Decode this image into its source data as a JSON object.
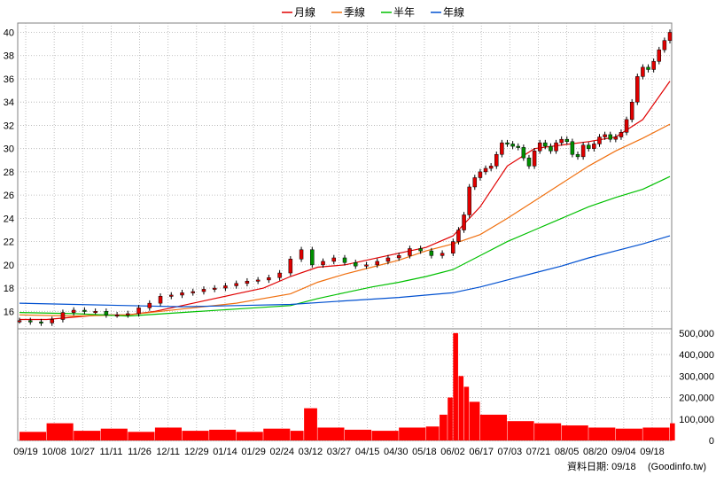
{
  "legend": [
    {
      "label": "月線",
      "color": "#e00000"
    },
    {
      "label": "季線",
      "color": "#f07010"
    },
    {
      "label": "半年",
      "color": "#00c000"
    },
    {
      "label": "年線",
      "color": "#0050d0"
    }
  ],
  "footer": {
    "date_label": "資料日期: 09/18",
    "source": "(Goodinfo.tw)"
  },
  "chart_data": [
    {
      "type": "line",
      "title": "",
      "price_axis": {
        "ylim": [
          14.5,
          40.8
        ],
        "ticks": [
          16,
          18,
          20,
          22,
          24,
          26,
          28,
          30,
          32,
          34,
          36,
          38,
          40
        ],
        "grid": true
      },
      "x_tick_labels": [
        "09/19",
        "10/08",
        "10/27",
        "11/11",
        "11/26",
        "12/11",
        "12/29",
        "01/14",
        "01/29",
        "02/24",
        "03/12",
        "03/27",
        "04/15",
        "04/30",
        "05/18",
        "06/02",
        "06/17",
        "07/03",
        "07/21",
        "08/05",
        "08/20",
        "09/04",
        "09/18"
      ],
      "series": [
        {
          "name": "月線",
          "color": "#e00000",
          "x": [
            0,
            10,
            20,
            30,
            40,
            50,
            60,
            70,
            80,
            90,
            100,
            110,
            120,
            130,
            140,
            150,
            160,
            170,
            180,
            190,
            200,
            210,
            220,
            230,
            240
          ],
          "values": [
            15.3,
            15.3,
            15.5,
            15.7,
            15.7,
            16.0,
            16.5,
            17.0,
            17.5,
            18.0,
            19.0,
            19.8,
            20.0,
            20.5,
            21.0,
            21.5,
            22.5,
            25.0,
            28.5,
            30.0,
            30.3,
            30.6,
            31.0,
            32.5,
            35.8
          ]
        },
        {
          "name": "季線",
          "color": "#f07010",
          "x": [
            0,
            20,
            40,
            60,
            80,
            100,
            110,
            120,
            130,
            140,
            150,
            160,
            170,
            180,
            190,
            200,
            210,
            220,
            230,
            240
          ],
          "values": [
            15.7,
            15.6,
            15.7,
            16.2,
            16.7,
            17.5,
            18.5,
            19.2,
            19.8,
            20.4,
            21.2,
            21.8,
            22.6,
            24.0,
            25.5,
            27.0,
            28.5,
            29.8,
            30.9,
            32.1
          ]
        },
        {
          "name": "半年",
          "color": "#00c000",
          "x": [
            0,
            20,
            40,
            60,
            80,
            100,
            110,
            120,
            130,
            140,
            150,
            160,
            170,
            180,
            190,
            200,
            210,
            220,
            230,
            240
          ],
          "values": [
            15.9,
            15.8,
            15.6,
            15.9,
            16.2,
            16.5,
            17.1,
            17.6,
            18.1,
            18.5,
            19.0,
            19.6,
            20.8,
            22.0,
            23.0,
            24.0,
            25.0,
            25.8,
            26.5,
            27.6
          ]
        },
        {
          "name": "年線",
          "color": "#0050d0",
          "x": [
            0,
            20,
            40,
            60,
            80,
            100,
            120,
            140,
            160,
            170,
            180,
            190,
            200,
            210,
            220,
            230,
            240
          ],
          "values": [
            16.7,
            16.6,
            16.5,
            16.4,
            16.5,
            16.6,
            16.9,
            17.2,
            17.6,
            18.1,
            18.7,
            19.3,
            19.9,
            20.6,
            21.2,
            21.8,
            22.5
          ]
        }
      ],
      "price_close": {
        "x": [
          0,
          4,
          8,
          12,
          16,
          20,
          24,
          28,
          32,
          36,
          40,
          44,
          48,
          52,
          56,
          60,
          64,
          68,
          72,
          76,
          80,
          84,
          88,
          92,
          96,
          100,
          104,
          108,
          112,
          116,
          120,
          124,
          128,
          132,
          136,
          140,
          144,
          148,
          152,
          156,
          160,
          162,
          164,
          166,
          168,
          170,
          172,
          174,
          176,
          178,
          180,
          182,
          184,
          186,
          188,
          190,
          192,
          194,
          196,
          198,
          200,
          202,
          204,
          206,
          208,
          210,
          212,
          214,
          216,
          218,
          220,
          222,
          224,
          226,
          228,
          230,
          232,
          234,
          236,
          238,
          240
        ],
        "values": [
          15.2,
          15.1,
          15.0,
          15.3,
          15.9,
          16.1,
          16.0,
          16.0,
          15.7,
          15.7,
          15.8,
          16.3,
          16.7,
          17.3,
          17.4,
          17.6,
          17.7,
          17.9,
          18.0,
          18.2,
          18.4,
          18.6,
          18.7,
          18.9,
          19.3,
          20.5,
          21.3,
          20.0,
          20.3,
          20.6,
          20.2,
          19.9,
          20.0,
          20.3,
          20.6,
          20.8,
          21.4,
          21.2,
          20.8,
          21.0,
          22.0,
          23.0,
          24.3,
          26.7,
          27.5,
          28.0,
          28.3,
          28.5,
          29.5,
          30.5,
          30.4,
          30.2,
          30.1,
          29.2,
          28.5,
          29.8,
          30.5,
          30.2,
          29.8,
          30.5,
          30.8,
          30.6,
          29.5,
          29.3,
          30.3,
          30.0,
          30.4,
          31.0,
          31.2,
          30.8,
          31.0,
          31.4,
          32.5,
          34.0,
          36.2,
          37.0,
          36.8,
          37.5,
          38.5,
          39.3,
          40.0
        ]
      }
    },
    {
      "type": "bar",
      "title": "",
      "volume_axis": {
        "ylim": [
          0,
          520000
        ],
        "tick_labels": [
          "0",
          "100,000",
          "200,000",
          "300,000",
          "400,000",
          "500,000"
        ],
        "tick_values": [
          0,
          100000,
          200000,
          300000,
          400000,
          500000
        ]
      },
      "color": "#ff0000",
      "x": [
        0,
        10,
        20,
        30,
        40,
        50,
        60,
        70,
        80,
        90,
        100,
        105,
        110,
        120,
        130,
        140,
        150,
        155,
        158,
        160,
        162,
        164,
        166,
        170,
        180,
        190,
        200,
        210,
        220,
        230,
        240
      ],
      "values": [
        40000,
        80000,
        45000,
        55000,
        40000,
        60000,
        45000,
        50000,
        40000,
        55000,
        45000,
        150000,
        60000,
        50000,
        45000,
        60000,
        65000,
        120000,
        200000,
        500000,
        300000,
        250000,
        180000,
        120000,
        90000,
        80000,
        70000,
        60000,
        55000,
        60000,
        80000
      ]
    }
  ]
}
